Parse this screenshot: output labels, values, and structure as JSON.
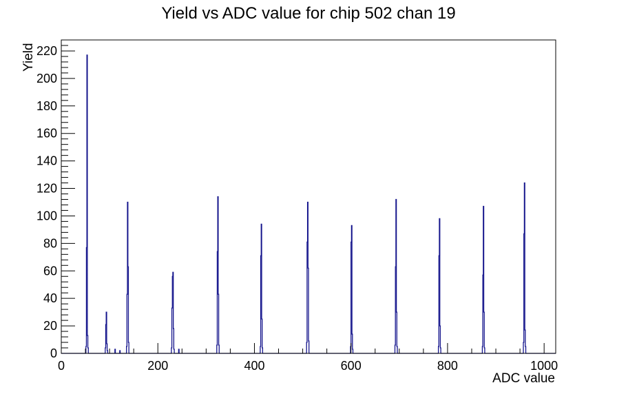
{
  "title": "Yield vs ADC value for chip 502 chan 19",
  "colors": {
    "histogram_line": "#14148c",
    "axis": "#000000",
    "background": "#ffffff",
    "text": "#000000"
  },
  "chart_data": {
    "type": "histogram",
    "title": "Yield vs ADC value for chip 502 chan 19",
    "xlabel": "ADC value",
    "ylabel": "Yield",
    "xlim": [
      0,
      1024
    ],
    "ylim": [
      0,
      228
    ],
    "grid": false,
    "legend": "none",
    "x_major_ticks": [
      0,
      200,
      400,
      600,
      800,
      1000
    ],
    "x_minor_step": 50,
    "y_major_ticks": [
      0,
      20,
      40,
      60,
      80,
      100,
      120,
      140,
      160,
      180,
      200,
      220
    ],
    "y_minor_step": 4,
    "peak_summary": [
      {
        "adc": 53,
        "yield": 217
      },
      {
        "adc": 93,
        "yield": 30
      },
      {
        "adc": 137,
        "yield": 110
      },
      {
        "adc": 231,
        "yield": 59
      },
      {
        "adc": 324,
        "yield": 114
      },
      {
        "adc": 414,
        "yield": 94
      },
      {
        "adc": 510,
        "yield": 110
      },
      {
        "adc": 601,
        "yield": 93
      },
      {
        "adc": 693,
        "yield": 112
      },
      {
        "adc": 783,
        "yield": 98
      },
      {
        "adc": 874,
        "yield": 107
      },
      {
        "adc": 959,
        "yield": 124
      }
    ],
    "bins": [
      [
        51,
        5
      ],
      [
        52,
        77
      ],
      [
        53,
        217
      ],
      [
        54,
        13
      ],
      [
        55,
        4
      ],
      [
        91,
        4
      ],
      [
        92,
        21
      ],
      [
        93,
        30
      ],
      [
        94,
        7
      ],
      [
        95,
        2
      ],
      [
        111,
        3
      ],
      [
        121,
        2
      ],
      [
        135,
        5
      ],
      [
        136,
        43
      ],
      [
        137,
        110
      ],
      [
        138,
        63
      ],
      [
        139,
        8
      ],
      [
        228,
        4
      ],
      [
        229,
        33
      ],
      [
        230,
        56
      ],
      [
        231,
        59
      ],
      [
        232,
        18
      ],
      [
        233,
        3
      ],
      [
        243,
        3
      ],
      [
        322,
        6
      ],
      [
        323,
        74
      ],
      [
        324,
        114
      ],
      [
        325,
        43
      ],
      [
        326,
        6
      ],
      [
        412,
        5
      ],
      [
        413,
        71
      ],
      [
        414,
        94
      ],
      [
        415,
        25
      ],
      [
        416,
        4
      ],
      [
        508,
        8
      ],
      [
        509,
        81
      ],
      [
        510,
        110
      ],
      [
        511,
        62
      ],
      [
        512,
        9
      ],
      [
        599,
        5
      ],
      [
        600,
        81
      ],
      [
        601,
        93
      ],
      [
        602,
        14
      ],
      [
        603,
        3
      ],
      [
        691,
        6
      ],
      [
        692,
        63
      ],
      [
        693,
        112
      ],
      [
        694,
        30
      ],
      [
        695,
        5
      ],
      [
        781,
        5
      ],
      [
        782,
        71
      ],
      [
        783,
        98
      ],
      [
        784,
        20
      ],
      [
        785,
        4
      ],
      [
        872,
        5
      ],
      [
        873,
        57
      ],
      [
        874,
        107
      ],
      [
        875,
        30
      ],
      [
        876,
        4
      ],
      [
        957,
        8
      ],
      [
        958,
        87
      ],
      [
        959,
        124
      ],
      [
        960,
        17
      ],
      [
        961,
        5
      ]
    ]
  }
}
